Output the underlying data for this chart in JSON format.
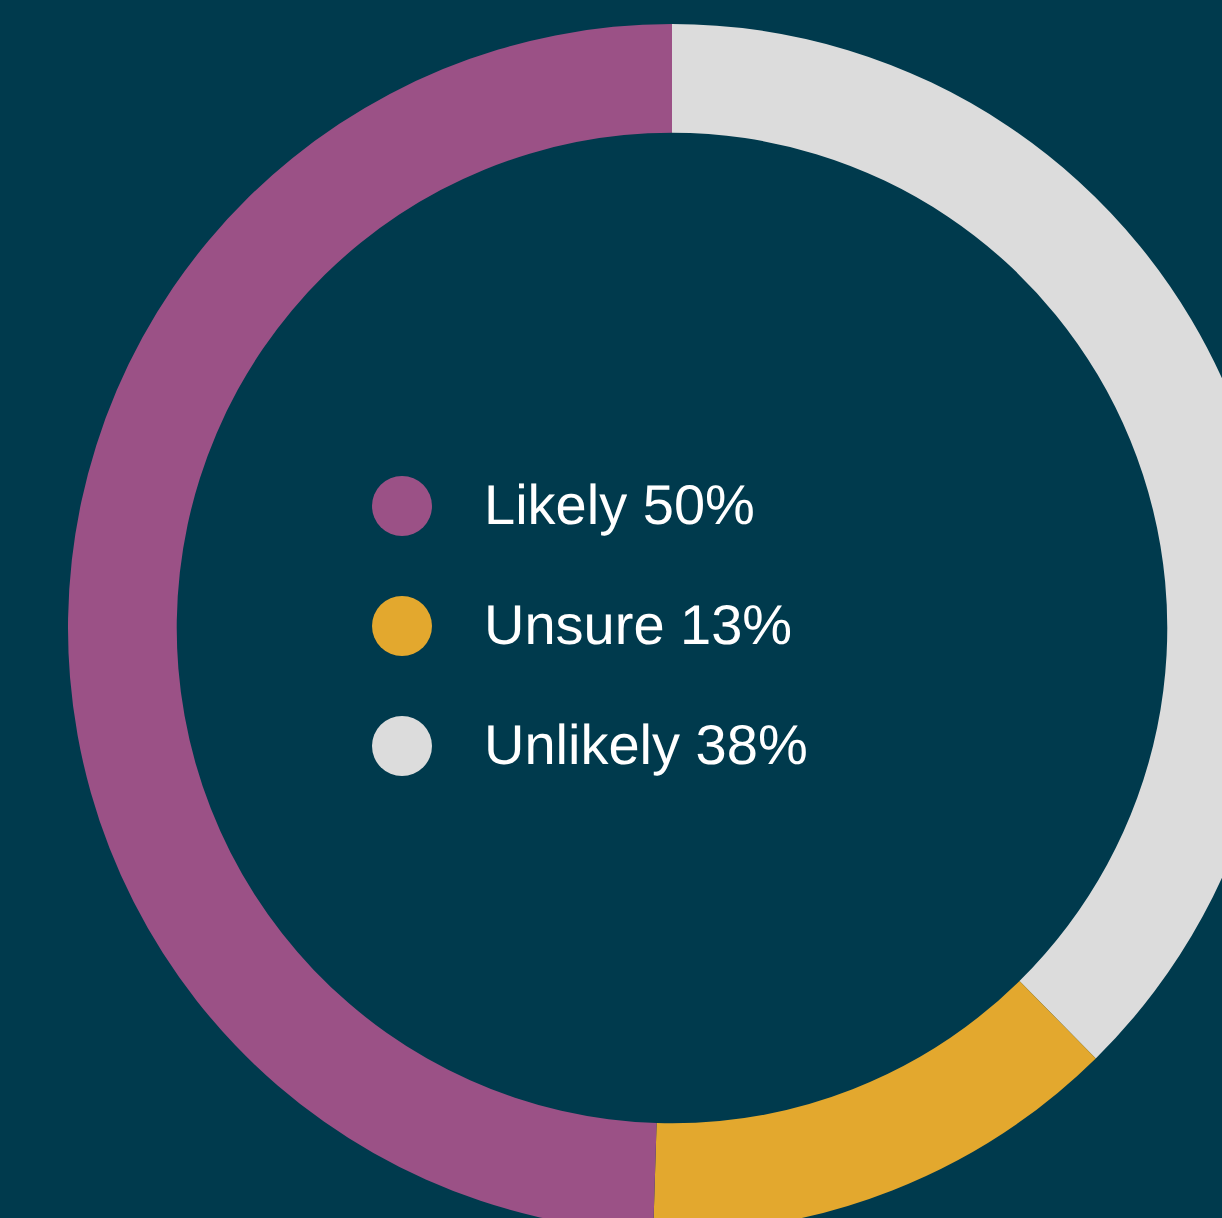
{
  "chart_data": {
    "type": "donut",
    "categories": [
      "Likely",
      "Unsure",
      "Unlikely"
    ],
    "values": [
      50,
      13,
      38
    ],
    "value_labels": [
      "50%",
      "13%",
      "38%"
    ],
    "colors": [
      "#9b5186",
      "#e3a82e",
      "#dcdcdc"
    ],
    "legend": "center"
  }
}
